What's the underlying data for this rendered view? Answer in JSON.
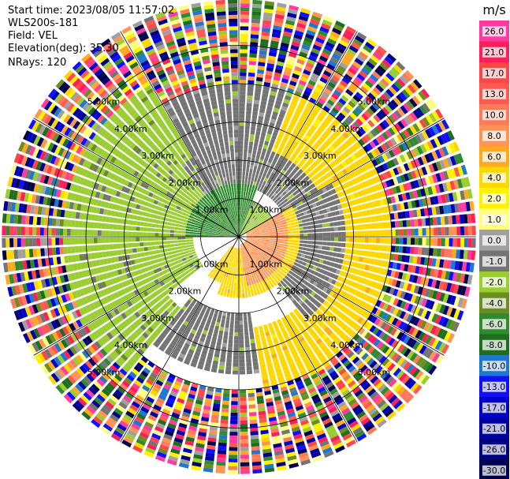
{
  "info": {
    "start_time": "Start time: 2023/08/05 11:57:02",
    "instrument": "WLS200s-181",
    "field": "Field: VEL",
    "elevation": "Elevation(deg): 35.30",
    "nrays": "NRays: 120"
  },
  "chart_data": {
    "type": "heatmap",
    "projection": "polar-ppi",
    "field": "VEL",
    "nrays": 120,
    "range_rings_km": [
      1,
      2,
      3,
      4,
      5
    ],
    "ring_labels": [
      "1.00km",
      "2.00km",
      "3.00km",
      "4.00km",
      "5.00km"
    ],
    "max_range_km": 6.2,
    "colorbar": {
      "unit": "m/s",
      "ticks": [
        "26.0",
        "21.0",
        "17.0",
        "13.0",
        "10.0",
        "8.0",
        "6.0",
        "4.0",
        "2.0",
        "1.0",
        "0.0",
        "-1.0",
        "-2.0",
        "-4.0",
        "-6.0",
        "-8.0",
        "-10.0",
        "-13.0",
        "-17.0",
        "-21.0",
        "-26.0",
        "-30.0"
      ],
      "colors": [
        "#ff3aa0",
        "#ff1e5a",
        "#ff4646",
        "#ff5a50",
        "#ff7a5a",
        "#ff9455",
        "#ffaa1e",
        "#ffd700",
        "#fff200",
        "#ffff80",
        "#a0a0a0",
        "#747474",
        "#9acd32",
        "#6b8e23",
        "#2e8b2e",
        "#1e6e1e",
        "#1f77d0",
        "#1010ff",
        "#0000c8",
        "#0000a0",
        "#000080",
        "#00004d"
      ]
    },
    "zones": [
      {
        "r_km": [
          0.0,
          1.4
        ],
        "az_deg": [
          270,
          20
        ],
        "value": -6.0
      },
      {
        "r_km": [
          0.0,
          1.0
        ],
        "az_deg": [
          20,
          60
        ],
        "value": -2.0
      },
      {
        "r_km": [
          0.2,
          1.3
        ],
        "az_deg": [
          60,
          170
        ],
        "value": 8.0
      },
      {
        "r_km": [
          1.3,
          1.6
        ],
        "az_deg": [
          60,
          200
        ],
        "value": 4.0
      },
      {
        "r_km": [
          0.3,
          1.3
        ],
        "az_deg": [
          170,
          220
        ],
        "value": 4.0
      },
      {
        "r_km": [
          1.2,
          2.4
        ],
        "az_deg": [
          230,
          320
        ],
        "value": -2.0
      },
      {
        "r_km": [
          1.3,
          2.4
        ],
        "az_deg": [
          320,
          60
        ],
        "value": -1.0
      },
      {
        "r_km": [
          1.5,
          2.8
        ],
        "az_deg": [
          60,
          140
        ],
        "value": -1.0
      },
      {
        "r_km": [
          2.4,
          4.0
        ],
        "az_deg": [
          20,
          170
        ],
        "value": 4.0
      },
      {
        "r_km": [
          2.0,
          3.6
        ],
        "az_deg": [
          170,
          220
        ],
        "value": -1.0
      },
      {
        "r_km": [
          2.4,
          4.6
        ],
        "az_deg": [
          220,
          330
        ],
        "value": -2.0
      },
      {
        "r_km": [
          2.4,
          4.0
        ],
        "az_deg": [
          330,
          20
        ],
        "value": -1.0
      },
      {
        "r_km": [
          4.0,
          6.2
        ],
        "az_deg": [
          0,
          360
        ],
        "value": "noise"
      }
    ]
  }
}
